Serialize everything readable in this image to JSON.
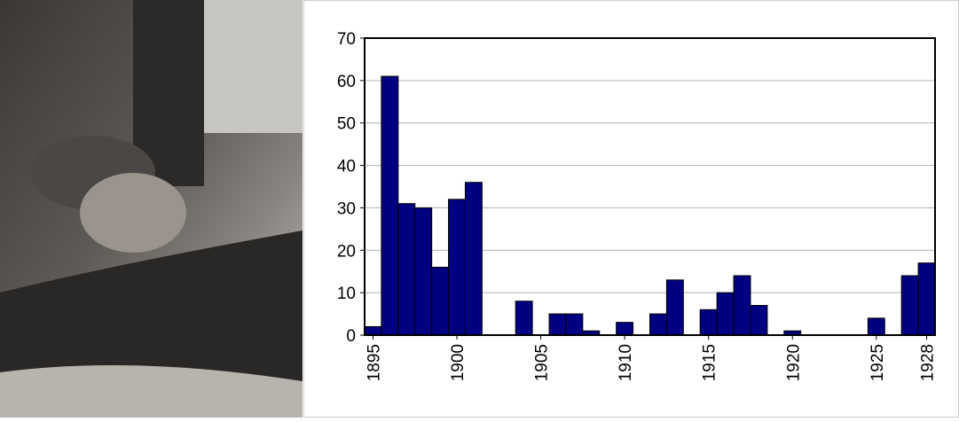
{
  "chart_data": {
    "type": "bar",
    "x": [
      1895,
      1896,
      1897,
      1898,
      1899,
      1900,
      1901,
      1902,
      1903,
      1904,
      1905,
      1906,
      1907,
      1908,
      1909,
      1910,
      1911,
      1912,
      1913,
      1914,
      1915,
      1916,
      1917,
      1918,
      1919,
      1920,
      1921,
      1922,
      1923,
      1924,
      1925,
      1926,
      1927,
      1928
    ],
    "values": [
      2,
      61,
      31,
      30,
      16,
      32,
      36,
      0,
      0,
      8,
      0,
      5,
      5,
      1,
      0,
      3,
      0,
      5,
      13,
      0,
      6,
      10,
      14,
      7,
      0,
      1,
      0,
      0,
      0,
      0,
      4,
      0,
      14,
      17
    ],
    "color": "#000080",
    "xlim": [
      1894.5,
      1928.5
    ],
    "xticks": [
      1895,
      1900,
      1905,
      1910,
      1915,
      1920,
      1925,
      1928
    ],
    "ylim": [
      0,
      70
    ],
    "yticks": [
      0,
      10,
      20,
      30,
      40,
      50,
      60,
      70
    ],
    "grid": true
  }
}
